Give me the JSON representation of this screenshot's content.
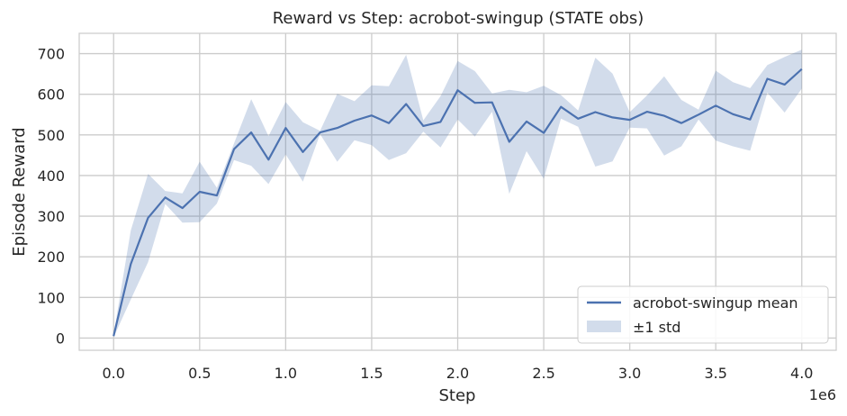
{
  "chart_data": {
    "type": "line",
    "title": "Reward vs Step: acrobot-swingup (STATE obs)",
    "xlabel": "Step",
    "ylabel": "Episode Reward",
    "x_multiplier_label": "1e6",
    "xlim": [
      -0.2,
      4.2
    ],
    "ylim": [
      -30,
      750
    ],
    "xticks": [
      0.0,
      0.5,
      1.0,
      1.5,
      2.0,
      2.5,
      3.0,
      3.5,
      4.0
    ],
    "xtick_labels": [
      "0.0",
      "0.5",
      "1.0",
      "1.5",
      "2.0",
      "2.5",
      "3.0",
      "3.5",
      "4.0"
    ],
    "yticks": [
      0,
      100,
      200,
      300,
      400,
      500,
      600,
      700
    ],
    "ytick_labels": [
      "0",
      "100",
      "200",
      "300",
      "400",
      "500",
      "600",
      "700"
    ],
    "grid": true,
    "legend_position": "bottom-right",
    "colors": {
      "line": "#4c72b0",
      "band": "#4c72b0",
      "grid": "#cccccc",
      "frame": "#cccccc"
    },
    "x": [
      0.0,
      0.1,
      0.2,
      0.3,
      0.4,
      0.5,
      0.6,
      0.7,
      0.8,
      0.9,
      1.0,
      1.1,
      1.2,
      1.3,
      1.4,
      1.5,
      1.6,
      1.7,
      1.8,
      1.9,
      2.0,
      2.1,
      2.2,
      2.3,
      2.4,
      2.5,
      2.6,
      2.7,
      2.8,
      2.9,
      3.0,
      3.1,
      3.2,
      3.3,
      3.4,
      3.5,
      3.6,
      3.7,
      3.8,
      3.9,
      4.0
    ],
    "series": [
      {
        "name": "acrobot-swingup mean",
        "kind": "line",
        "values": [
          5,
          182,
          296,
          346,
          320,
          360,
          351,
          465,
          506,
          439,
          517,
          458,
          506,
          517,
          535,
          548,
          529,
          576,
          522,
          532,
          610,
          579,
          580,
          483,
          533,
          505,
          569,
          540,
          556,
          543,
          537,
          557,
          547,
          529,
          550,
          572,
          551,
          538,
          638,
          624,
          662
        ]
      },
      {
        "name": "±1 std",
        "kind": "band",
        "upper": [
          8,
          265,
          404,
          362,
          356,
          434,
          370,
          479,
          588,
          497,
          581,
          531,
          510,
          601,
          583,
          622,
          620,
          697,
          536,
          595,
          682,
          657,
          602,
          611,
          605,
          621,
          598,
          560,
          690,
          651,
          556,
          597,
          644,
          586,
          562,
          658,
          630,
          615,
          672,
          692,
          710
        ]
      }
    ],
    "band_lower": [
      2,
      95,
      187,
      330,
      284,
      285,
      331,
      438,
      424,
      379,
      452,
      385,
      502,
      434,
      487,
      475,
      438,
      455,
      508,
      469,
      538,
      496,
      557,
      355,
      460,
      392,
      540,
      520,
      422,
      435,
      518,
      516,
      449,
      472,
      538,
      486,
      472,
      461,
      604,
      555,
      614
    ]
  }
}
